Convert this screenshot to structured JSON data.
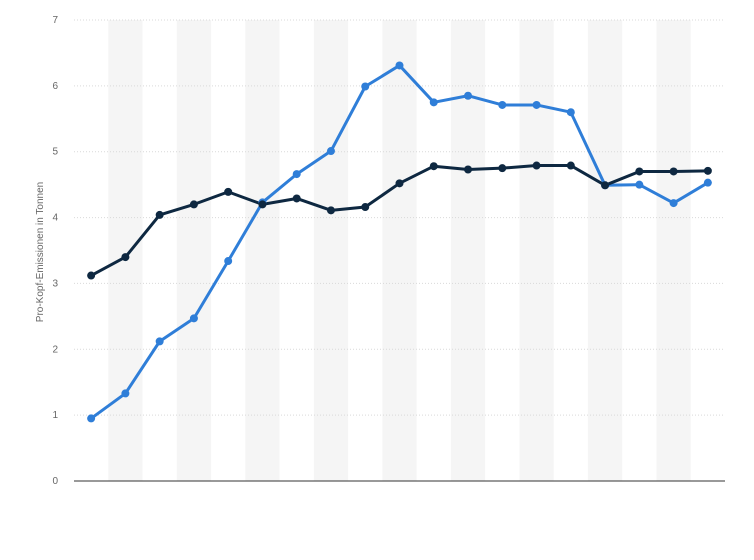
{
  "chart_data": {
    "type": "line",
    "title": "",
    "xlabel": "",
    "ylabel": "Pro-Kopf-Emissionen in Tonnen",
    "ylim": [
      0,
      7
    ],
    "yticks": [
      "0",
      "1",
      "2",
      "3",
      "4",
      "5",
      "6",
      "7"
    ],
    "grid": true,
    "legend": "none",
    "x": [
      1,
      2,
      3,
      4,
      5,
      6,
      7,
      8,
      9,
      10,
      11,
      12,
      13,
      14,
      15,
      16,
      17,
      18,
      19
    ],
    "series": [
      {
        "color": "#2f7ed8",
        "values": [
          0.95,
          1.33,
          2.12,
          2.47,
          3.34,
          4.23,
          4.66,
          5.01,
          5.99,
          6.31,
          5.75,
          5.85,
          5.71,
          5.71,
          5.6,
          4.49,
          4.5,
          4.22,
          4.53
        ]
      },
      {
        "color": "#0e2841",
        "values": [
          3.12,
          3.4,
          4.04,
          4.2,
          4.39,
          4.2,
          4.29,
          4.11,
          4.16,
          4.52,
          4.78,
          4.73,
          4.75,
          4.79,
          4.79,
          4.49,
          4.7,
          4.7,
          4.71
        ]
      }
    ]
  }
}
